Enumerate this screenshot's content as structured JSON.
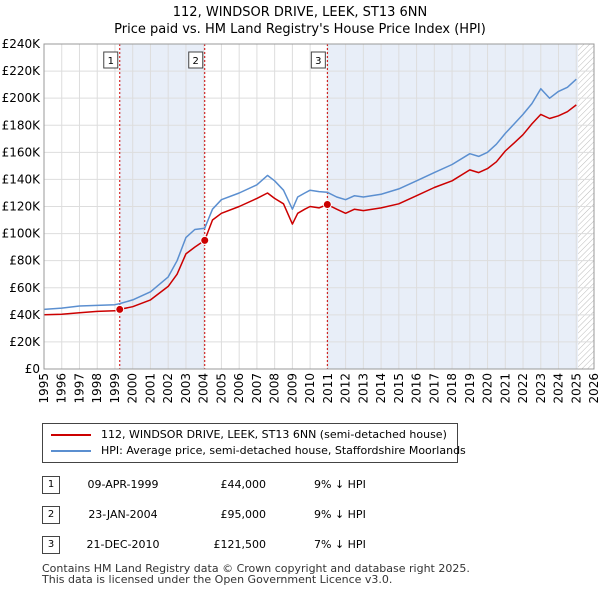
{
  "title_line1": "112, WINDSOR DRIVE, LEEK, ST13 6NN",
  "title_line2": "Price paid vs. HM Land Registry's House Price Index (HPI)",
  "legend": {
    "property_label": "112, WINDSOR DRIVE, LEEK, ST13 6NN (semi-detached house)",
    "hpi_label": "HPI: Average price, semi-detached house, Staffordshire Moorlands"
  },
  "sales": [
    {
      "num": "1",
      "date": "09-APR-1999",
      "price": "£44,000",
      "hpi": "9% ↓ HPI"
    },
    {
      "num": "2",
      "date": "23-JAN-2004",
      "price": "£95,000",
      "hpi": "9% ↓ HPI"
    },
    {
      "num": "3",
      "date": "21-DEC-2010",
      "price": "£121,500",
      "hpi": "7% ↓ HPI"
    }
  ],
  "footer": {
    "line1": "Contains HM Land Registry data © Crown copyright and database right 2025.",
    "line2": "This data is licensed under the Open Government Licence v3.0."
  },
  "colors": {
    "property": "#cc0000",
    "hpi": "#5b8fd0",
    "shade": "#e8eef8",
    "grid": "#dddddd",
    "future_hatch": "#bbbbbb"
  },
  "chart_data": {
    "type": "line",
    "title": "112, WINDSOR DRIVE, LEEK, ST13 6NN — Price paid vs. HM Land Registry's House Price Index (HPI)",
    "xlabel": "",
    "ylabel": "",
    "xlim": [
      1995,
      2026
    ],
    "ylim": [
      0,
      240000
    ],
    "x_ticks": [
      1995,
      1996,
      1997,
      1998,
      1999,
      2000,
      2001,
      2002,
      2003,
      2004,
      2005,
      2006,
      2007,
      2008,
      2009,
      2010,
      2011,
      2012,
      2013,
      2014,
      2015,
      2016,
      2017,
      2018,
      2019,
      2020,
      2021,
      2022,
      2023,
      2024,
      2025,
      2026
    ],
    "y_ticks": [
      0,
      20000,
      40000,
      60000,
      80000,
      100000,
      120000,
      140000,
      160000,
      180000,
      200000,
      220000,
      240000
    ],
    "y_tick_labels": [
      "£0",
      "£20K",
      "£40K",
      "£60K",
      "£80K",
      "£100K",
      "£120K",
      "£140K",
      "£160K",
      "£180K",
      "£200K",
      "£220K",
      "£240K"
    ],
    "future_start": 2025.1,
    "shaded_ranges": [
      [
        1999.27,
        2004.06
      ],
      [
        2010.97,
        2025.1
      ]
    ],
    "series": [
      {
        "name": "HPI: Average price, semi-detached house, Staffordshire Moorlands",
        "color": "#5b8fd0",
        "x": [
          1995.0,
          1996.0,
          1997.0,
          1998.0,
          1999.0,
          1999.27,
          2000.0,
          2001.0,
          2002.0,
          2002.5,
          2003.0,
          2003.5,
          2004.06,
          2004.5,
          2005.0,
          2006.0,
          2007.0,
          2007.6,
          2008.0,
          2008.5,
          2009.0,
          2009.3,
          2009.7,
          2010.0,
          2010.5,
          2010.97,
          2011.5,
          2012.0,
          2012.5,
          2013.0,
          2014.0,
          2015.0,
          2016.0,
          2017.0,
          2018.0,
          2019.0,
          2019.5,
          2020.0,
          2020.5,
          2021.0,
          2021.5,
          2022.0,
          2022.5,
          2023.0,
          2023.5,
          2024.0,
          2024.5,
          2025.0
        ],
        "values": [
          44000,
          45000,
          46500,
          47000,
          47500,
          48300,
          51000,
          57000,
          68000,
          80000,
          97000,
          103000,
          104000,
          118000,
          125000,
          130000,
          136000,
          143000,
          139000,
          132000,
          118000,
          127000,
          130000,
          132000,
          131000,
          130500,
          127000,
          125000,
          128000,
          127000,
          129000,
          133000,
          139000,
          145000,
          151000,
          159000,
          157000,
          160000,
          166000,
          174000,
          181000,
          188000,
          196000,
          207000,
          200000,
          205000,
          208000,
          214000
        ]
      },
      {
        "name": "112, WINDSOR DRIVE, LEEK, ST13 6NN (semi-detached house)",
        "color": "#cc0000",
        "x": [
          1995.0,
          1996.0,
          1997.0,
          1998.0,
          1999.0,
          1999.27,
          2000.0,
          2001.0,
          2002.0,
          2002.5,
          2003.0,
          2003.5,
          2004.06,
          2004.5,
          2005.0,
          2006.0,
          2007.0,
          2007.6,
          2008.0,
          2008.5,
          2009.0,
          2009.3,
          2009.7,
          2010.0,
          2010.5,
          2010.97,
          2011.5,
          2012.0,
          2012.5,
          2013.0,
          2014.0,
          2015.0,
          2016.0,
          2017.0,
          2018.0,
          2019.0,
          2019.5,
          2020.0,
          2020.5,
          2021.0,
          2021.5,
          2022.0,
          2022.5,
          2023.0,
          2023.5,
          2024.0,
          2024.5,
          2025.0
        ],
        "values": [
          40000,
          40500,
          41500,
          42500,
          43000,
          44000,
          46000,
          51000,
          61000,
          70000,
          85000,
          90000,
          95000,
          110000,
          115000,
          120000,
          126000,
          130000,
          126000,
          122000,
          107000,
          115000,
          118000,
          120000,
          119000,
          121500,
          118000,
          115000,
          118000,
          117000,
          119000,
          122000,
          128000,
          134000,
          139000,
          147000,
          145000,
          148000,
          153000,
          161000,
          167000,
          173000,
          181000,
          188000,
          185000,
          187000,
          190000,
          195000
        ]
      }
    ],
    "sale_points": [
      {
        "label": "1",
        "x": 1999.27,
        "y": 44000
      },
      {
        "label": "2",
        "x": 2004.06,
        "y": 95000
      },
      {
        "label": "3",
        "x": 2010.97,
        "y": 121500
      }
    ]
  }
}
